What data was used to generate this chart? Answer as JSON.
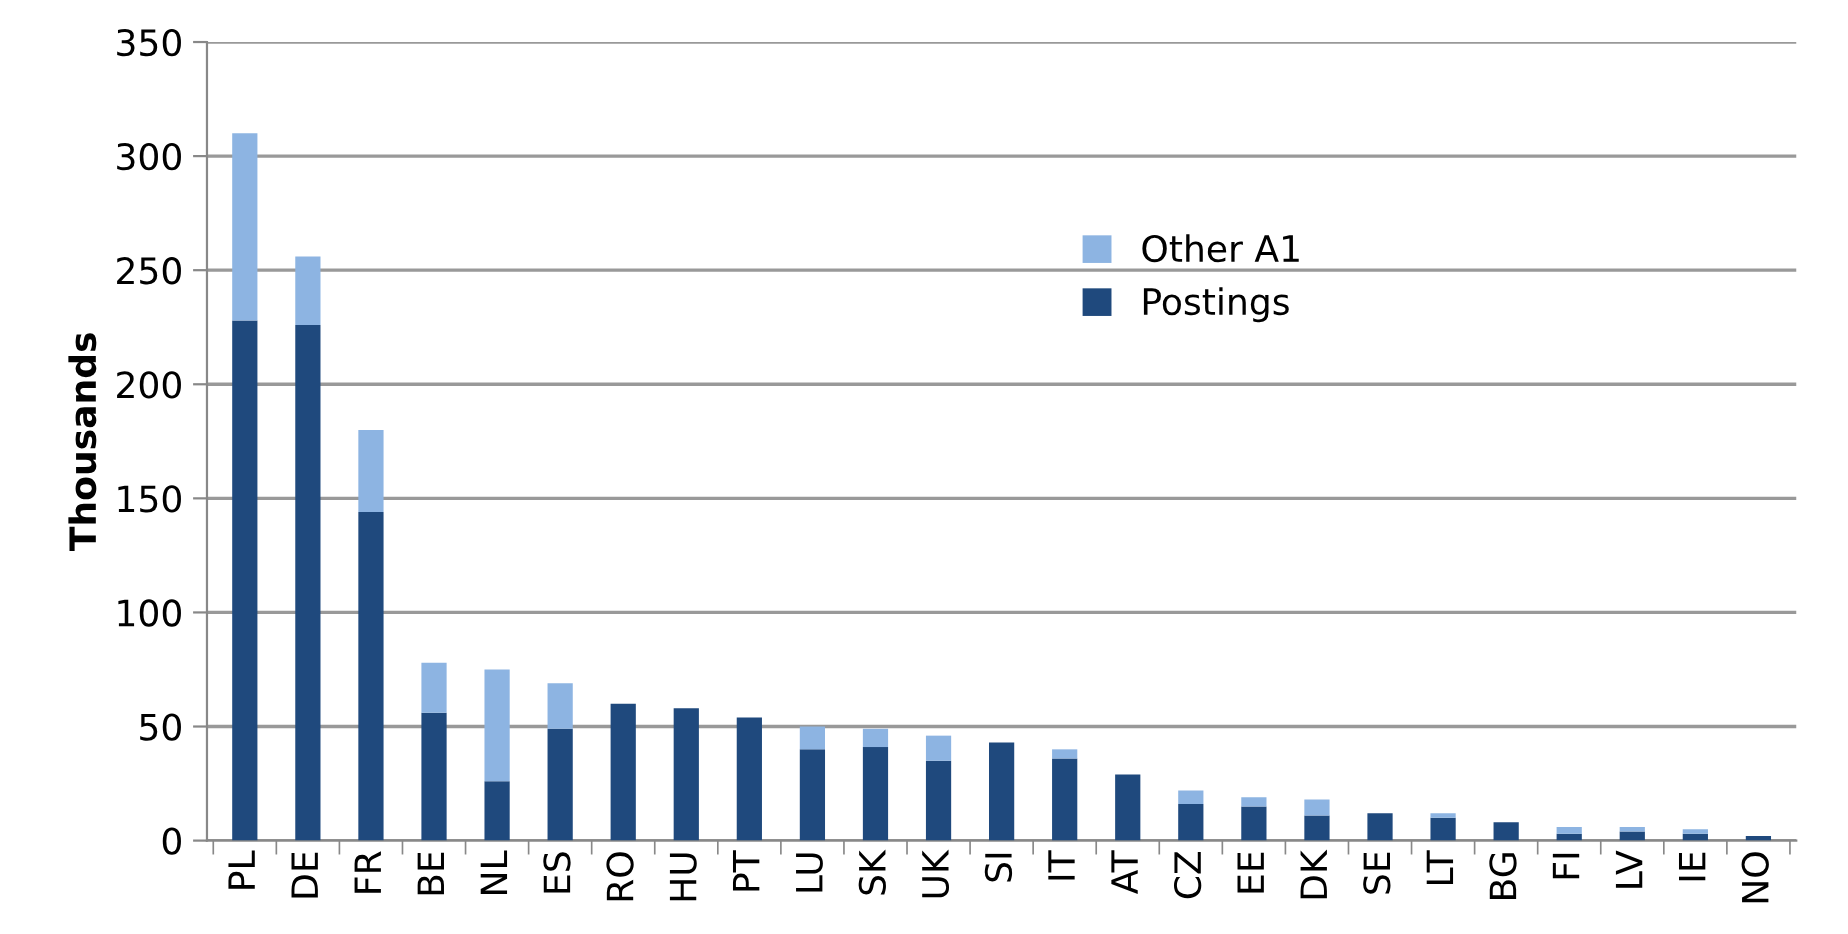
{
  "chart_data": {
    "type": "bar",
    "stacked": true,
    "ylabel": "Thousands",
    "categories": [
      "PL",
      "DE",
      "FR",
      "BE",
      "NL",
      "ES",
      "RO",
      "HU",
      "PT",
      "LU",
      "SK",
      "UK",
      "SI",
      "IT",
      "AT",
      "CZ",
      "EE",
      "DK",
      "SE",
      "LT",
      "BG",
      "FI",
      "LV",
      "IE",
      "NO"
    ],
    "series": [
      {
        "name": "Postings",
        "color": "#1f497d",
        "values": [
          228,
          226,
          144,
          56,
          26,
          49,
          60,
          58,
          54,
          40,
          41,
          35,
          43,
          36,
          29,
          16,
          15,
          11,
          12,
          10,
          8,
          3,
          4,
          3,
          2
        ]
      },
      {
        "name": "Other A1",
        "color": "#8db4e2",
        "values": [
          82,
          30,
          36,
          22,
          49,
          20,
          0,
          0,
          0,
          10,
          8,
          11,
          0,
          4,
          0,
          6,
          4,
          7,
          0,
          2,
          0,
          3,
          2,
          2,
          0
        ]
      }
    ],
    "ylim": [
      0,
      350
    ],
    "yticks": [
      0,
      50,
      100,
      150,
      200,
      250,
      300,
      350
    ],
    "grid": "y",
    "legend": "top"
  }
}
